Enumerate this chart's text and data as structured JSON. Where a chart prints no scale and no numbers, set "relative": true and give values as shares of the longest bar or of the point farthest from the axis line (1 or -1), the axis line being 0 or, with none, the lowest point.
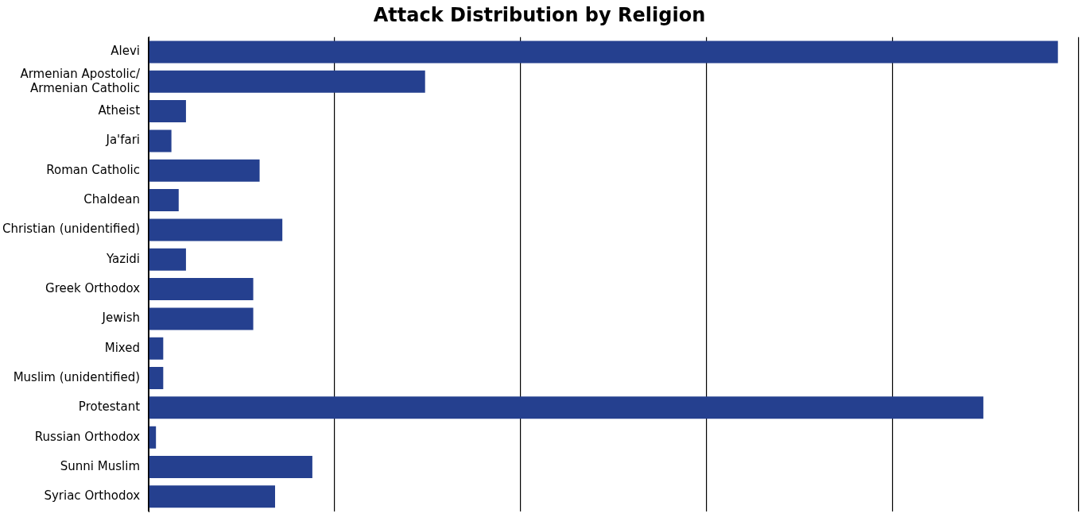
{
  "chart_data": {
    "type": "bar",
    "orientation": "horizontal",
    "relative": true,
    "title": "Attack Distribution by Religion",
    "categories": [
      "Alevi",
      "Armenian Apostolic/\nArmenian Catholic",
      "Atheist",
      "Ja'fari",
      "Roman Catholic",
      "Chaldean",
      "Christian (unidentified)",
      "Yazidi",
      "Greek Orthodox",
      "Jewish",
      "Mixed",
      "Muslim (unidentified)",
      "Protestant",
      "Russian Orthodox",
      "Sunni Muslim",
      "Syriac Orthodox"
    ],
    "values": [
      1,
      0.304,
      0.041,
      0.025,
      0.122,
      0.033,
      0.147,
      0.041,
      0.115,
      0.115,
      0.016,
      0.016,
      0.918,
      0.008,
      0.18,
      0.139
    ],
    "color": "#25408f",
    "grid": "x",
    "legend": false
  }
}
